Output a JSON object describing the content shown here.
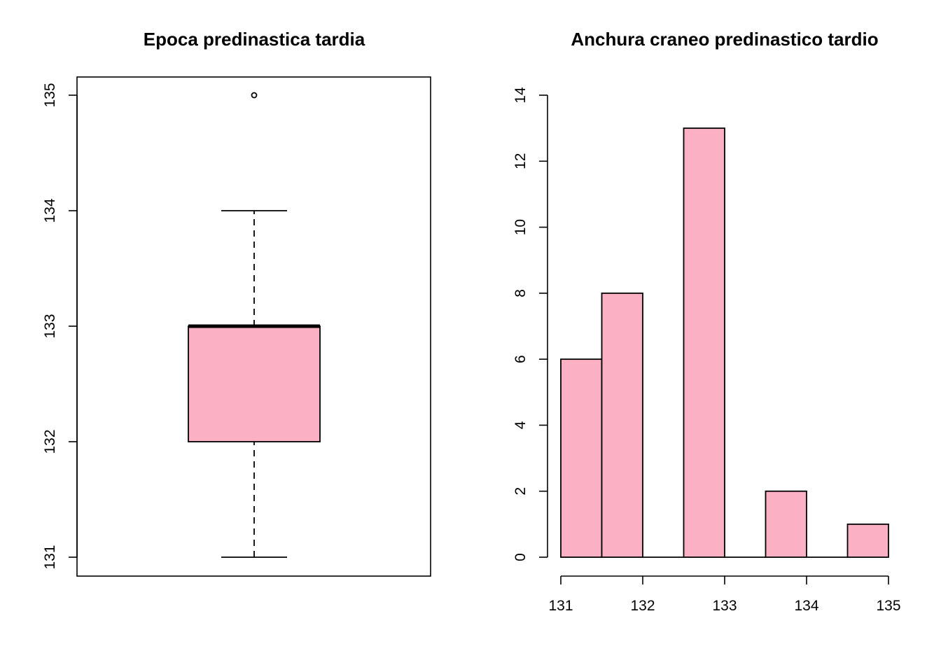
{
  "colors": {
    "fill": "#FBB1C3",
    "stroke": "#000000",
    "background": "#FFFFFF"
  },
  "chart_data": [
    {
      "type": "boxplot",
      "title": "Epoca predinastica tardia",
      "xlabel": "",
      "ylabel": "",
      "ylim": [
        130.85,
        135.15
      ],
      "yticks": [
        131,
        132,
        133,
        134,
        135
      ],
      "ytick_labels": [
        "131",
        "132",
        "133",
        "134",
        "135"
      ],
      "stats": {
        "whisker_low": 131,
        "q1": 132,
        "median": 133,
        "q3": 133,
        "whisker_high": 134
      },
      "outliers": [
        135
      ],
      "box_frame": true
    },
    {
      "type": "bar",
      "title": "Anchura craneo predinastico tardio",
      "xlabel": "",
      "ylabel": "",
      "bins": [
        {
          "x0": 131.0,
          "x1": 131.5,
          "count": 6
        },
        {
          "x0": 131.5,
          "x1": 132.0,
          "count": 8
        },
        {
          "x0": 132.0,
          "x1": 132.5,
          "count": 0
        },
        {
          "x0": 132.5,
          "x1": 133.0,
          "count": 13
        },
        {
          "x0": 133.0,
          "x1": 133.5,
          "count": 0
        },
        {
          "x0": 133.5,
          "x1": 134.0,
          "count": 2
        },
        {
          "x0": 134.0,
          "x1": 134.5,
          "count": 0
        },
        {
          "x0": 134.5,
          "x1": 135.0,
          "count": 1
        }
      ],
      "xlim": [
        131,
        135
      ],
      "ylim": [
        0,
        14
      ],
      "xticks": [
        131,
        132,
        133,
        134,
        135
      ],
      "xtick_labels": [
        "131",
        "132",
        "133",
        "134",
        "135"
      ],
      "yticks": [
        0,
        2,
        4,
        6,
        8,
        10,
        12,
        14
      ],
      "ytick_labels": [
        "0",
        "2",
        "4",
        "6",
        "8",
        "10",
        "12",
        "14"
      ]
    }
  ]
}
